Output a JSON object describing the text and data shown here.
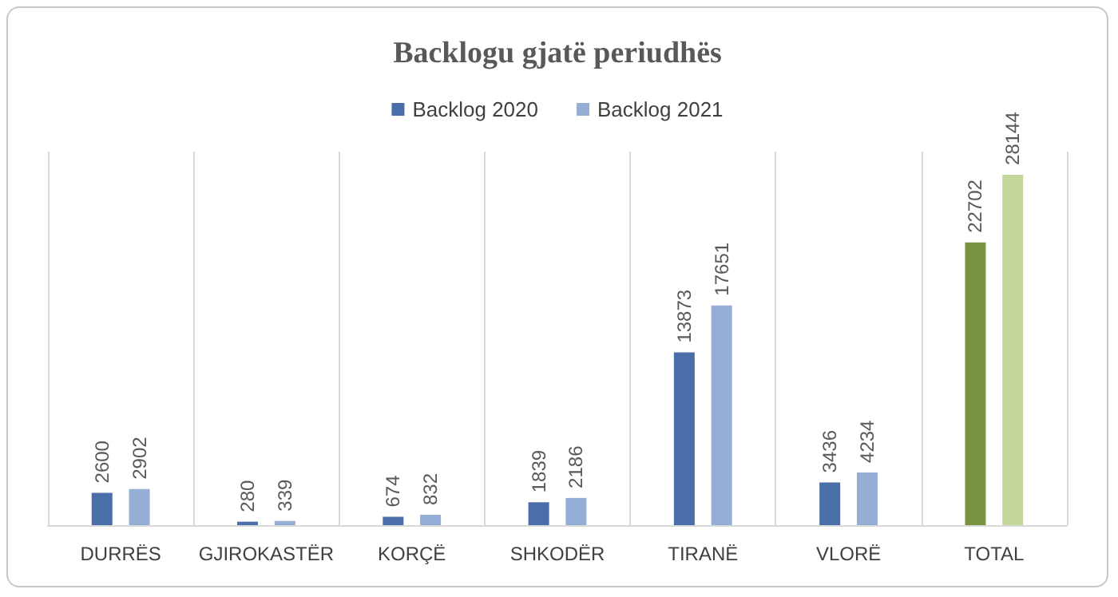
{
  "chart_data": {
    "type": "bar",
    "title": "Backlogu gjatë periudhës",
    "categories": [
      "DURRËS",
      "GJIROKASTËR",
      "KORÇË",
      "SHKODËR",
      "TIRANË",
      "VLORË",
      "TOTAL"
    ],
    "series": [
      {
        "name": "Backlog 2020",
        "color": "#4a6ea7",
        "colors": [
          "#4a6ea7",
          "#4a6ea7",
          "#4a6ea7",
          "#4a6ea7",
          "#4a6ea7",
          "#4a6ea7",
          "#789440"
        ],
        "values": [
          2600,
          280,
          674,
          1839,
          13873,
          3436,
          22702
        ]
      },
      {
        "name": "Backlog 2021",
        "color": "#94aed6",
        "colors": [
          "#94aed6",
          "#94aed6",
          "#94aed6",
          "#94aed6",
          "#94aed6",
          "#94aed6",
          "#c4d79c"
        ],
        "values": [
          2902,
          339,
          832,
          2186,
          17651,
          4234,
          28144
        ]
      }
    ],
    "data_labels": true,
    "grid": "x",
    "legend": "top"
  }
}
